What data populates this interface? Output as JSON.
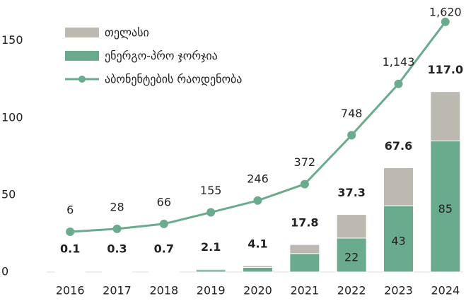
{
  "chart_data": {
    "type": "bar",
    "categories": [
      "2016",
      "2017",
      "2018",
      "2019",
      "2020",
      "2021",
      "2022",
      "2023",
      "2024"
    ],
    "series": [
      {
        "name": "თელასი",
        "color": "#bcbab0",
        "type": "bar",
        "values": [
          0.0,
          0.1,
          0.2,
          0.6,
          1.1,
          5.8,
          15.3,
          24.6,
          32
        ]
      },
      {
        "name": "ენერგო-პრო ჯორჯია",
        "color": "#6aab8e",
        "type": "bar",
        "values": [
          0.1,
          0.2,
          0.5,
          1.5,
          3.0,
          12,
          22,
          43,
          85
        ],
        "value_labels": [
          null,
          null,
          null,
          null,
          null,
          null,
          "22",
          "43",
          "85"
        ]
      },
      {
        "name": "აბონენტების რაოდენობა",
        "color": "#6aab8e",
        "type": "line",
        "axis": "y2",
        "values": [
          6,
          28,
          66,
          155,
          246,
          372,
          748,
          1143,
          1620
        ],
        "value_labels": [
          "6",
          "28",
          "66",
          "155",
          "246",
          "372",
          "748",
          "1,143",
          "1,620"
        ]
      }
    ],
    "totals": [
      0.1,
      0.3,
      0.7,
      2.1,
      4.1,
      17.8,
      37.3,
      67.6,
      117.0
    ],
    "total_labels": [
      "0.1",
      "0.3",
      "0.7",
      "2.1",
      "4.1",
      "17.8",
      "37.3",
      "67.6",
      "117.0"
    ],
    "ylim": [
      0,
      170
    ],
    "yticks": [
      0,
      50,
      100,
      150
    ],
    "y2lim": [
      -304,
      1712
    ],
    "legend": "upper left"
  }
}
